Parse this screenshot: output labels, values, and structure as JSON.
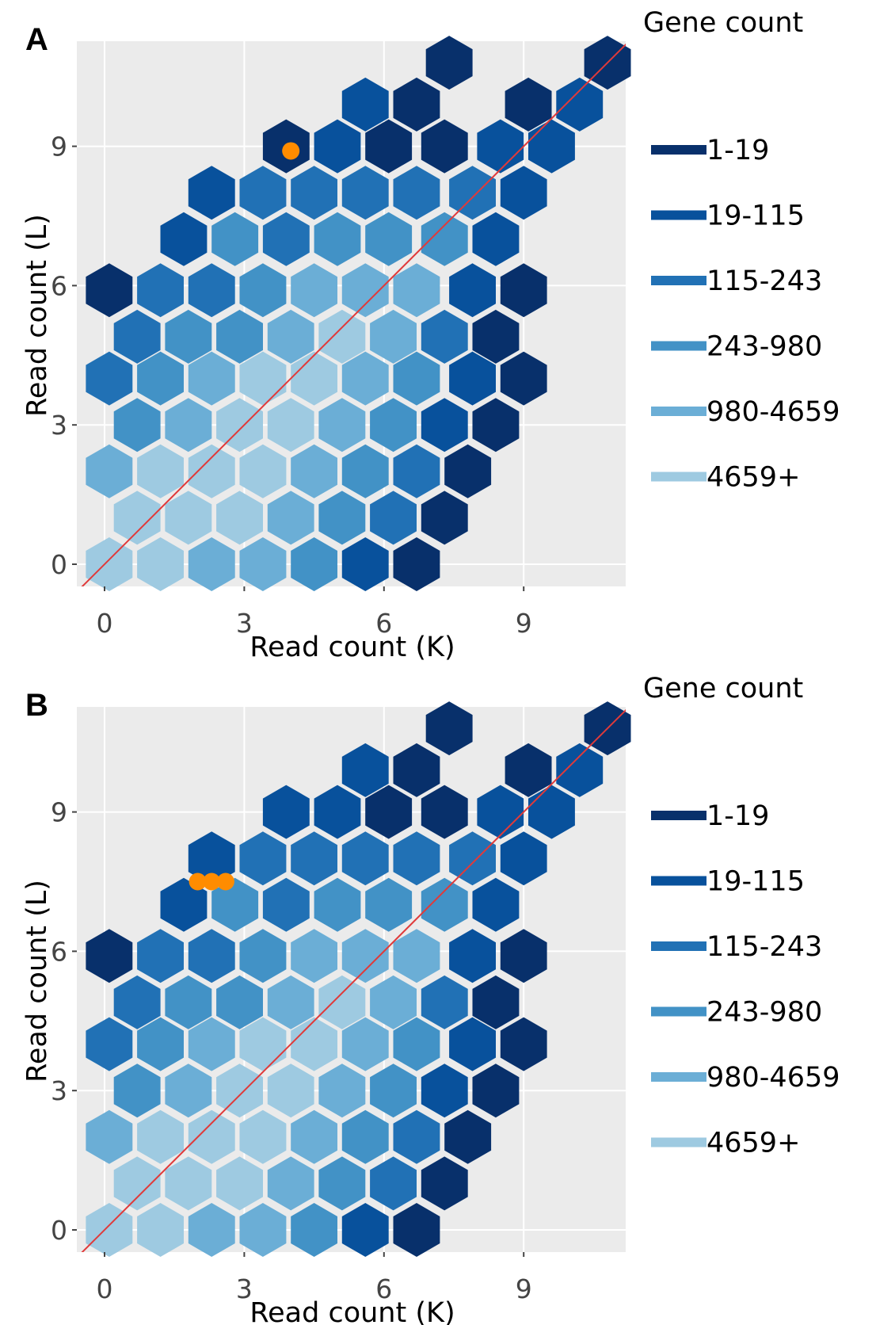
{
  "chart_data": [
    {
      "type": "hexbin",
      "panel_label": "A",
      "xlabel": "Read count (K)",
      "ylabel": "Read count (L)",
      "x_ticks": [
        0,
        3,
        6,
        9
      ],
      "y_ticks": [
        0,
        3,
        6,
        9
      ],
      "xlim": [
        -0.6,
        11.2
      ],
      "ylim": [
        -0.5,
        11.4
      ],
      "grid": true,
      "reference_line": {
        "type": "identity",
        "color": "#e03a3a"
      },
      "legend": {
        "title": "Gene count",
        "position": "right",
        "items": [
          {
            "label": "1-19",
            "color": "#08306b"
          },
          {
            "label": "19-115",
            "color": "#08519c"
          },
          {
            "label": "115-243",
            "color": "#2171b5"
          },
          {
            "label": "243-980",
            "color": "#4292c6"
          },
          {
            "label": "980-4659",
            "color": "#6baed6"
          },
          {
            "label": "4659+",
            "color": "#9ecae1"
          }
        ]
      },
      "bins": [
        {
          "x": 7.4,
          "y": 10.8,
          "c": 0
        },
        {
          "x": 10.8,
          "y": 10.8,
          "c": 0
        },
        {
          "x": 5.6,
          "y": 9.9,
          "c": 1
        },
        {
          "x": 6.7,
          "y": 9.9,
          "c": 0
        },
        {
          "x": 9.1,
          "y": 9.9,
          "c": 0
        },
        {
          "x": 10.2,
          "y": 9.9,
          "c": 1
        },
        {
          "x": 3.9,
          "y": 9.0,
          "c": 0
        },
        {
          "x": 5.0,
          "y": 9.0,
          "c": 1
        },
        {
          "x": 6.1,
          "y": 9.0,
          "c": 0
        },
        {
          "x": 7.3,
          "y": 9.0,
          "c": 0
        },
        {
          "x": 8.5,
          "y": 9.0,
          "c": 1
        },
        {
          "x": 9.6,
          "y": 9.0,
          "c": 1
        },
        {
          "x": 2.3,
          "y": 8.0,
          "c": 1
        },
        {
          "x": 3.4,
          "y": 8.0,
          "c": 2
        },
        {
          "x": 4.5,
          "y": 8.0,
          "c": 2
        },
        {
          "x": 5.6,
          "y": 8.0,
          "c": 2
        },
        {
          "x": 6.7,
          "y": 8.0,
          "c": 2
        },
        {
          "x": 7.9,
          "y": 8.0,
          "c": 2
        },
        {
          "x": 9.0,
          "y": 8.0,
          "c": 1
        },
        {
          "x": 1.7,
          "y": 7.0,
          "c": 1
        },
        {
          "x": 2.8,
          "y": 7.0,
          "c": 3
        },
        {
          "x": 3.9,
          "y": 7.0,
          "c": 2
        },
        {
          "x": 5.0,
          "y": 7.0,
          "c": 3
        },
        {
          "x": 6.1,
          "y": 7.0,
          "c": 3
        },
        {
          "x": 7.3,
          "y": 7.0,
          "c": 3
        },
        {
          "x": 8.4,
          "y": 7.0,
          "c": 1
        },
        {
          "x": 0.1,
          "y": 5.9,
          "c": 0
        },
        {
          "x": 1.2,
          "y": 5.9,
          "c": 2
        },
        {
          "x": 2.3,
          "y": 5.9,
          "c": 2
        },
        {
          "x": 3.4,
          "y": 5.9,
          "c": 3
        },
        {
          "x": 4.5,
          "y": 5.9,
          "c": 4
        },
        {
          "x": 5.6,
          "y": 5.9,
          "c": 4
        },
        {
          "x": 6.7,
          "y": 5.9,
          "c": 4
        },
        {
          "x": 7.9,
          "y": 5.9,
          "c": 1
        },
        {
          "x": 9.0,
          "y": 5.9,
          "c": 0
        },
        {
          "x": 0.7,
          "y": 4.9,
          "c": 2
        },
        {
          "x": 1.8,
          "y": 4.9,
          "c": 3
        },
        {
          "x": 2.9,
          "y": 4.9,
          "c": 3
        },
        {
          "x": 4.0,
          "y": 4.9,
          "c": 4
        },
        {
          "x": 5.1,
          "y": 4.9,
          "c": 5
        },
        {
          "x": 6.2,
          "y": 4.9,
          "c": 4
        },
        {
          "x": 7.3,
          "y": 4.9,
          "c": 2
        },
        {
          "x": 8.4,
          "y": 4.9,
          "c": 0
        },
        {
          "x": 0.1,
          "y": 4.0,
          "c": 2
        },
        {
          "x": 1.2,
          "y": 4.0,
          "c": 3
        },
        {
          "x": 2.3,
          "y": 4.0,
          "c": 4
        },
        {
          "x": 3.4,
          "y": 4.0,
          "c": 5
        },
        {
          "x": 4.5,
          "y": 4.0,
          "c": 5
        },
        {
          "x": 5.6,
          "y": 4.0,
          "c": 4
        },
        {
          "x": 6.7,
          "y": 4.0,
          "c": 3
        },
        {
          "x": 7.9,
          "y": 4.0,
          "c": 1
        },
        {
          "x": 9.0,
          "y": 4.0,
          "c": 0
        },
        {
          "x": 0.7,
          "y": 3.0,
          "c": 3
        },
        {
          "x": 1.8,
          "y": 3.0,
          "c": 4
        },
        {
          "x": 2.9,
          "y": 3.0,
          "c": 5
        },
        {
          "x": 4.0,
          "y": 3.0,
          "c": 5
        },
        {
          "x": 5.1,
          "y": 3.0,
          "c": 4
        },
        {
          "x": 6.2,
          "y": 3.0,
          "c": 3
        },
        {
          "x": 7.3,
          "y": 3.0,
          "c": 1
        },
        {
          "x": 8.4,
          "y": 3.0,
          "c": 0
        },
        {
          "x": 0.1,
          "y": 2.0,
          "c": 4
        },
        {
          "x": 1.2,
          "y": 2.0,
          "c": 5
        },
        {
          "x": 2.3,
          "y": 2.0,
          "c": 5
        },
        {
          "x": 3.4,
          "y": 2.0,
          "c": 5
        },
        {
          "x": 4.5,
          "y": 2.0,
          "c": 4
        },
        {
          "x": 5.6,
          "y": 2.0,
          "c": 3
        },
        {
          "x": 6.7,
          "y": 2.0,
          "c": 2
        },
        {
          "x": 7.8,
          "y": 2.0,
          "c": 0
        },
        {
          "x": 0.7,
          "y": 1.0,
          "c": 5
        },
        {
          "x": 1.8,
          "y": 1.0,
          "c": 5
        },
        {
          "x": 2.9,
          "y": 1.0,
          "c": 5
        },
        {
          "x": 4.0,
          "y": 1.0,
          "c": 4
        },
        {
          "x": 5.1,
          "y": 1.0,
          "c": 3
        },
        {
          "x": 6.2,
          "y": 1.0,
          "c": 2
        },
        {
          "x": 7.3,
          "y": 1.0,
          "c": 0
        },
        {
          "x": 0.1,
          "y": 0.0,
          "c": 5
        },
        {
          "x": 1.2,
          "y": 0.0,
          "c": 5
        },
        {
          "x": 2.3,
          "y": 0.0,
          "c": 4
        },
        {
          "x": 3.4,
          "y": 0.0,
          "c": 4
        },
        {
          "x": 4.5,
          "y": 0.0,
          "c": 3
        },
        {
          "x": 5.6,
          "y": 0.0,
          "c": 1
        },
        {
          "x": 6.7,
          "y": 0.0,
          "c": 0
        }
      ],
      "highlight_points": [
        {
          "x": 4.0,
          "y": 8.9,
          "color": "#ff8c00"
        }
      ]
    },
    {
      "type": "hexbin",
      "panel_label": "B",
      "xlabel": "Read count (K)",
      "ylabel": "Read count (L)",
      "x_ticks": [
        0,
        3,
        6,
        9
      ],
      "y_ticks": [
        0,
        3,
        6,
        9
      ],
      "xlim": [
        -0.6,
        11.2
      ],
      "ylim": [
        -0.5,
        11.4
      ],
      "grid": true,
      "reference_line": {
        "type": "identity",
        "color": "#e03a3a"
      },
      "legend": {
        "title": "Gene count",
        "position": "right",
        "items": [
          {
            "label": "1-19",
            "color": "#08306b"
          },
          {
            "label": "19-115",
            "color": "#08519c"
          },
          {
            "label": "115-243",
            "color": "#2171b5"
          },
          {
            "label": "243-980",
            "color": "#4292c6"
          },
          {
            "label": "980-4659",
            "color": "#6baed6"
          },
          {
            "label": "4659+",
            "color": "#9ecae1"
          }
        ]
      },
      "bins": [
        {
          "x": 7.4,
          "y": 10.8,
          "c": 0
        },
        {
          "x": 10.8,
          "y": 10.8,
          "c": 0
        },
        {
          "x": 5.6,
          "y": 9.9,
          "c": 1
        },
        {
          "x": 6.7,
          "y": 9.9,
          "c": 0
        },
        {
          "x": 9.1,
          "y": 9.9,
          "c": 0
        },
        {
          "x": 10.2,
          "y": 9.9,
          "c": 1
        },
        {
          "x": 3.9,
          "y": 9.0,
          "c": 1
        },
        {
          "x": 5.0,
          "y": 9.0,
          "c": 1
        },
        {
          "x": 6.1,
          "y": 9.0,
          "c": 0
        },
        {
          "x": 7.3,
          "y": 9.0,
          "c": 0
        },
        {
          "x": 8.5,
          "y": 9.0,
          "c": 1
        },
        {
          "x": 9.6,
          "y": 9.0,
          "c": 1
        },
        {
          "x": 2.3,
          "y": 8.0,
          "c": 1
        },
        {
          "x": 3.4,
          "y": 8.0,
          "c": 2
        },
        {
          "x": 4.5,
          "y": 8.0,
          "c": 2
        },
        {
          "x": 5.6,
          "y": 8.0,
          "c": 2
        },
        {
          "x": 6.7,
          "y": 8.0,
          "c": 2
        },
        {
          "x": 7.9,
          "y": 8.0,
          "c": 2
        },
        {
          "x": 9.0,
          "y": 8.0,
          "c": 1
        },
        {
          "x": 1.7,
          "y": 7.0,
          "c": 1
        },
        {
          "x": 2.8,
          "y": 7.0,
          "c": 3
        },
        {
          "x": 3.9,
          "y": 7.0,
          "c": 2
        },
        {
          "x": 5.0,
          "y": 7.0,
          "c": 3
        },
        {
          "x": 6.1,
          "y": 7.0,
          "c": 3
        },
        {
          "x": 7.3,
          "y": 7.0,
          "c": 3
        },
        {
          "x": 8.4,
          "y": 7.0,
          "c": 1
        },
        {
          "x": 0.1,
          "y": 5.9,
          "c": 0
        },
        {
          "x": 1.2,
          "y": 5.9,
          "c": 2
        },
        {
          "x": 2.3,
          "y": 5.9,
          "c": 2
        },
        {
          "x": 3.4,
          "y": 5.9,
          "c": 3
        },
        {
          "x": 4.5,
          "y": 5.9,
          "c": 4
        },
        {
          "x": 5.6,
          "y": 5.9,
          "c": 4
        },
        {
          "x": 6.7,
          "y": 5.9,
          "c": 4
        },
        {
          "x": 7.9,
          "y": 5.9,
          "c": 1
        },
        {
          "x": 9.0,
          "y": 5.9,
          "c": 0
        },
        {
          "x": 0.7,
          "y": 4.9,
          "c": 2
        },
        {
          "x": 1.8,
          "y": 4.9,
          "c": 3
        },
        {
          "x": 2.9,
          "y": 4.9,
          "c": 3
        },
        {
          "x": 4.0,
          "y": 4.9,
          "c": 4
        },
        {
          "x": 5.1,
          "y": 4.9,
          "c": 5
        },
        {
          "x": 6.2,
          "y": 4.9,
          "c": 4
        },
        {
          "x": 7.3,
          "y": 4.9,
          "c": 2
        },
        {
          "x": 8.4,
          "y": 4.9,
          "c": 0
        },
        {
          "x": 0.1,
          "y": 4.0,
          "c": 2
        },
        {
          "x": 1.2,
          "y": 4.0,
          "c": 3
        },
        {
          "x": 2.3,
          "y": 4.0,
          "c": 4
        },
        {
          "x": 3.4,
          "y": 4.0,
          "c": 5
        },
        {
          "x": 4.5,
          "y": 4.0,
          "c": 5
        },
        {
          "x": 5.6,
          "y": 4.0,
          "c": 4
        },
        {
          "x": 6.7,
          "y": 4.0,
          "c": 3
        },
        {
          "x": 7.9,
          "y": 4.0,
          "c": 1
        },
        {
          "x": 9.0,
          "y": 4.0,
          "c": 0
        },
        {
          "x": 0.7,
          "y": 3.0,
          "c": 3
        },
        {
          "x": 1.8,
          "y": 3.0,
          "c": 4
        },
        {
          "x": 2.9,
          "y": 3.0,
          "c": 5
        },
        {
          "x": 4.0,
          "y": 3.0,
          "c": 5
        },
        {
          "x": 5.1,
          "y": 3.0,
          "c": 4
        },
        {
          "x": 6.2,
          "y": 3.0,
          "c": 3
        },
        {
          "x": 7.3,
          "y": 3.0,
          "c": 1
        },
        {
          "x": 8.4,
          "y": 3.0,
          "c": 0
        },
        {
          "x": 0.1,
          "y": 2.0,
          "c": 4
        },
        {
          "x": 1.2,
          "y": 2.0,
          "c": 5
        },
        {
          "x": 2.3,
          "y": 2.0,
          "c": 5
        },
        {
          "x": 3.4,
          "y": 2.0,
          "c": 5
        },
        {
          "x": 4.5,
          "y": 2.0,
          "c": 4
        },
        {
          "x": 5.6,
          "y": 2.0,
          "c": 3
        },
        {
          "x": 6.7,
          "y": 2.0,
          "c": 2
        },
        {
          "x": 7.8,
          "y": 2.0,
          "c": 0
        },
        {
          "x": 0.7,
          "y": 1.0,
          "c": 5
        },
        {
          "x": 1.8,
          "y": 1.0,
          "c": 5
        },
        {
          "x": 2.9,
          "y": 1.0,
          "c": 5
        },
        {
          "x": 4.0,
          "y": 1.0,
          "c": 4
        },
        {
          "x": 5.1,
          "y": 1.0,
          "c": 3
        },
        {
          "x": 6.2,
          "y": 1.0,
          "c": 2
        },
        {
          "x": 7.3,
          "y": 1.0,
          "c": 0
        },
        {
          "x": 0.1,
          "y": 0.0,
          "c": 5
        },
        {
          "x": 1.2,
          "y": 0.0,
          "c": 5
        },
        {
          "x": 2.3,
          "y": 0.0,
          "c": 4
        },
        {
          "x": 3.4,
          "y": 0.0,
          "c": 4
        },
        {
          "x": 4.5,
          "y": 0.0,
          "c": 3
        },
        {
          "x": 5.6,
          "y": 0.0,
          "c": 1
        },
        {
          "x": 6.7,
          "y": 0.0,
          "c": 0
        }
      ],
      "highlight_points": [
        {
          "x": 2.0,
          "y": 7.5,
          "color": "#ff8c00"
        },
        {
          "x": 2.3,
          "y": 7.5,
          "color": "#ff8c00"
        },
        {
          "x": 2.6,
          "y": 7.5,
          "color": "#ff8c00"
        }
      ]
    }
  ]
}
